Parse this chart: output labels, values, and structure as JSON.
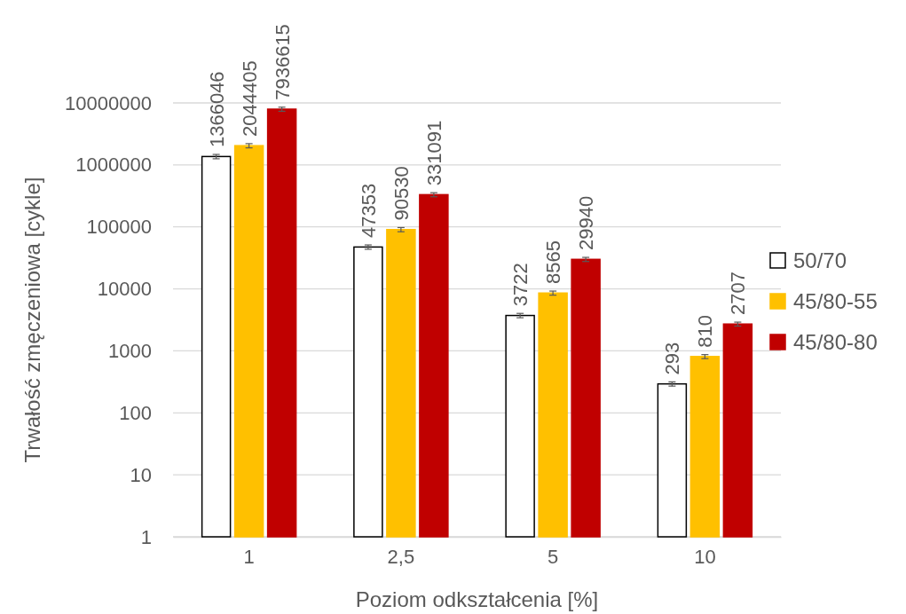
{
  "chart_data": {
    "type": "bar",
    "xlabel": "Poziom odkształcenia [%]",
    "ylabel": "Trwałość zmęczeniowa [cykle]",
    "categories": [
      "1",
      "2,5",
      "5",
      "10"
    ],
    "series": [
      {
        "name": "50/70",
        "color": "#ffffff",
        "values": [
          1366046,
          47353,
          3722,
          293
        ],
        "errors": [
          110000,
          3800,
          300,
          23
        ]
      },
      {
        "name": "45/80-55",
        "color": "#ffc000",
        "values": [
          2044405,
          90530,
          8565,
          810
        ],
        "errors": [
          160000,
          7000,
          650,
          60
        ]
      },
      {
        "name": "45/80-80",
        "color": "#c00000",
        "values": [
          7936615,
          331091,
          29940,
          2707
        ],
        "errors": [
          600000,
          25000,
          2300,
          200
        ]
      }
    ],
    "log": true,
    "ylim": [
      1,
      10000000
    ],
    "yticks": [
      1,
      10,
      100,
      1000,
      10000,
      100000,
      1000000,
      10000000
    ],
    "grid": "y",
    "legend": "right",
    "data_labels": true
  }
}
